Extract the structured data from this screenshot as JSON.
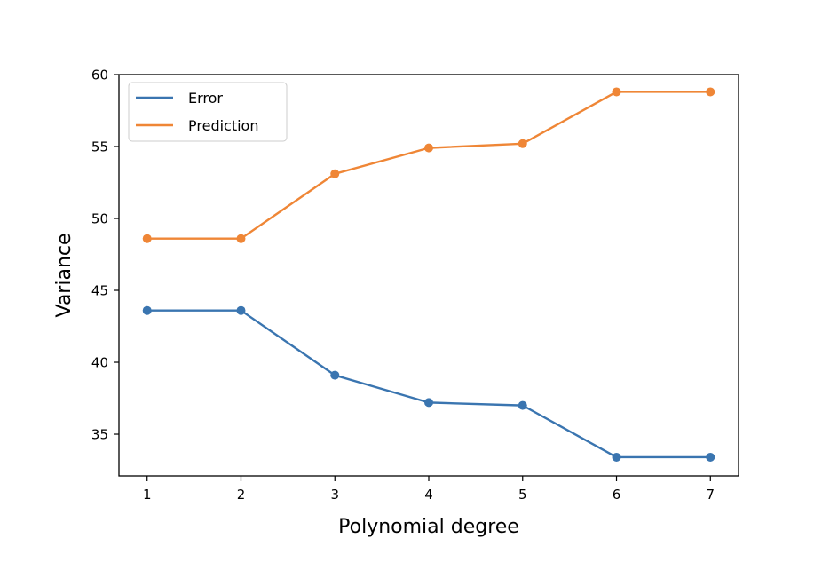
{
  "chart_data": {
    "type": "line",
    "x": [
      1,
      2,
      3,
      4,
      5,
      6,
      7
    ],
    "series": [
      {
        "name": "Error",
        "color": "#3a75b0",
        "marker": "circle",
        "values": [
          43.6,
          43.6,
          39.1,
          37.2,
          37.0,
          33.4,
          33.4
        ]
      },
      {
        "name": "Prediction",
        "color": "#ef8636",
        "marker": "circle",
        "values": [
          48.6,
          48.6,
          53.1,
          54.9,
          55.2,
          58.8,
          58.8
        ]
      }
    ],
    "xlabel": "Polynomial degree",
    "ylabel": "Variance",
    "xlim": [
      0.7,
      7.3
    ],
    "ylim": [
      32.1,
      60.0
    ],
    "xticks": [
      1,
      2,
      3,
      4,
      5,
      6,
      7
    ],
    "yticks": [
      35,
      40,
      45,
      50,
      55,
      60
    ],
    "grid": false,
    "legend_position": "top-left"
  }
}
